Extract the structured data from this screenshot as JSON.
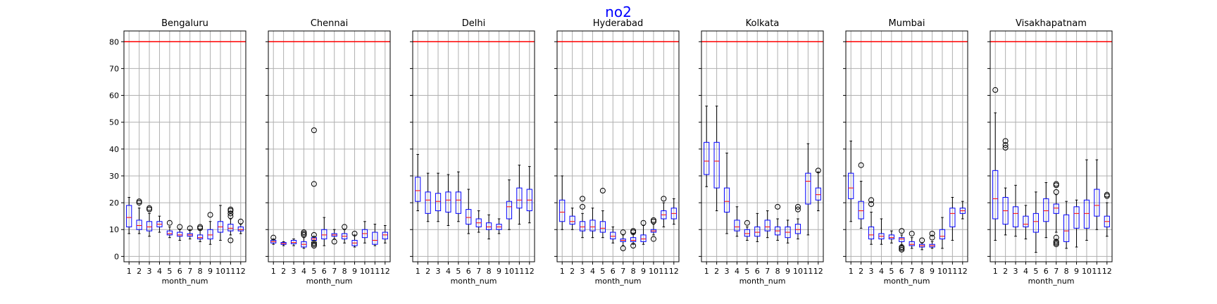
{
  "chart_data": {
    "type": "boxplot",
    "suptitle": "no2",
    "suptitle_color": "#0000ff",
    "xlabel": "month_num",
    "ylim": [
      -2,
      84
    ],
    "yticks": [
      0,
      10,
      20,
      30,
      40,
      50,
      60,
      70,
      80
    ],
    "categories": [
      "1",
      "2",
      "3",
      "4",
      "5",
      "6",
      "7",
      "8",
      "9",
      "10",
      "11",
      "12"
    ],
    "reference_line": {
      "y": 80,
      "color": "#ff0000"
    },
    "box_color": "#0000ff",
    "median_color": "#ff0000",
    "whisker_color": "#000000",
    "grid": true,
    "panels": [
      {
        "title": "Bengaluru",
        "boxes": [
          {
            "min": 8.5,
            "q1": 11,
            "med": 14.5,
            "q3": 19,
            "max": 22,
            "fliers": []
          },
          {
            "min": 8.5,
            "q1": 10,
            "med": 11.5,
            "q3": 13.5,
            "max": 18,
            "fliers": [
              20,
              20.5
            ]
          },
          {
            "min": 7.5,
            "q1": 9.5,
            "med": 11,
            "q3": 13,
            "max": 16,
            "fliers": [
              17.5,
              18
            ]
          },
          {
            "min": 9,
            "q1": 11,
            "med": 12,
            "q3": 13,
            "max": 15,
            "fliers": []
          },
          {
            "min": 7,
            "q1": 8,
            "med": 8.5,
            "q3": 9.5,
            "max": 11,
            "fliers": [
              12.5
            ]
          },
          {
            "min": 6,
            "q1": 7.5,
            "med": 8,
            "q3": 9,
            "max": 10,
            "fliers": [
              11
            ]
          },
          {
            "min": 6.5,
            "q1": 7.5,
            "med": 8,
            "q3": 8.5,
            "max": 10,
            "fliers": [
              10.5
            ]
          },
          {
            "min": 5.5,
            "q1": 6.5,
            "med": 7,
            "q3": 8,
            "max": 10,
            "fliers": [
              10.5,
              11
            ]
          },
          {
            "min": 4.5,
            "q1": 6.5,
            "med": 8,
            "q3": 10,
            "max": 13,
            "fliers": [
              15.5
            ]
          },
          {
            "min": 6,
            "q1": 9,
            "med": 11,
            "q3": 13,
            "max": 19,
            "fliers": []
          },
          {
            "min": 8,
            "q1": 9.5,
            "med": 10.5,
            "q3": 12,
            "max": 14,
            "fliers": [
              6,
              15,
              16,
              17,
              17.5
            ]
          },
          {
            "min": 8.5,
            "q1": 9.5,
            "med": 10,
            "q3": 11,
            "max": 12,
            "fliers": [
              13
            ]
          }
        ]
      },
      {
        "title": "Chennai",
        "boxes": [
          {
            "min": 4.5,
            "q1": 5,
            "med": 5.5,
            "q3": 6,
            "max": 6.5,
            "fliers": [
              7
            ]
          },
          {
            "min": 4,
            "q1": 4.5,
            "med": 4.8,
            "q3": 5.2,
            "max": 5.5,
            "fliers": []
          },
          {
            "min": 4,
            "q1": 4.7,
            "med": 5.2,
            "q3": 6,
            "max": 6.5,
            "fliers": []
          },
          {
            "min": 3,
            "q1": 3.5,
            "med": 4.5,
            "q3": 5.5,
            "max": 7,
            "fliers": [
              8,
              8.5,
              9
            ]
          },
          {
            "min": 5,
            "q1": 6,
            "med": 6.5,
            "q3": 7,
            "max": 7.5,
            "fliers": [
              4,
              4.5,
              5,
              8,
              27,
              47
            ]
          },
          {
            "min": 4,
            "q1": 6.5,
            "med": 8,
            "q3": 10,
            "max": 14.5,
            "fliers": []
          },
          {
            "min": 6.5,
            "q1": 7.5,
            "med": 8,
            "q3": 8.5,
            "max": 10,
            "fliers": [
              5.5
            ]
          },
          {
            "min": 5,
            "q1": 6.5,
            "med": 7.5,
            "q3": 8.5,
            "max": 10,
            "fliers": [
              11
            ]
          },
          {
            "min": 3.5,
            "q1": 4,
            "med": 5,
            "q3": 6,
            "max": 8,
            "fliers": [
              8.5
            ]
          },
          {
            "min": 5,
            "q1": 7,
            "med": 8.5,
            "q3": 10,
            "max": 13,
            "fliers": []
          },
          {
            "min": 4,
            "q1": 4.5,
            "med": 6,
            "q3": 9,
            "max": 12,
            "fliers": []
          },
          {
            "min": 5,
            "q1": 6.5,
            "med": 8,
            "q3": 9,
            "max": 11.5,
            "fliers": []
          }
        ]
      },
      {
        "title": "Delhi",
        "boxes": [
          {
            "min": 17,
            "q1": 20.5,
            "med": 24.5,
            "q3": 29.5,
            "max": 38,
            "fliers": []
          },
          {
            "min": 13,
            "q1": 16,
            "med": 21,
            "q3": 24,
            "max": 31,
            "fliers": []
          },
          {
            "min": 13,
            "q1": 17,
            "med": 20.5,
            "q3": 23.5,
            "max": 31,
            "fliers": []
          },
          {
            "min": 11.5,
            "q1": 16.5,
            "med": 21,
            "q3": 24,
            "max": 30.5,
            "fliers": []
          },
          {
            "min": 13,
            "q1": 16,
            "med": 21,
            "q3": 24,
            "max": 31.5,
            "fliers": []
          },
          {
            "min": 8.5,
            "q1": 12,
            "med": 14.5,
            "q3": 17.5,
            "max": 25,
            "fliers": []
          },
          {
            "min": 9,
            "q1": 11,
            "med": 12.5,
            "q3": 14,
            "max": 17,
            "fliers": []
          },
          {
            "min": 6.5,
            "q1": 10,
            "med": 11,
            "q3": 12.5,
            "max": 15.5,
            "fliers": []
          },
          {
            "min": 8.5,
            "q1": 10,
            "med": 11,
            "q3": 12,
            "max": 14,
            "fliers": []
          },
          {
            "min": 10,
            "q1": 14,
            "med": 18.5,
            "q3": 20.5,
            "max": 28.5,
            "fliers": []
          },
          {
            "min": 12,
            "q1": 18,
            "med": 21,
            "q3": 25.5,
            "max": 34,
            "fliers": []
          },
          {
            "min": 12.5,
            "q1": 17,
            "med": 21,
            "q3": 25,
            "max": 33.5,
            "fliers": []
          }
        ]
      },
      {
        "title": "Hyderabad",
        "boxes": [
          {
            "min": 10,
            "q1": 13,
            "med": 16.5,
            "q3": 21,
            "max": 30,
            "fliers": []
          },
          {
            "min": 10,
            "q1": 12,
            "med": 13,
            "q3": 15,
            "max": 18,
            "fliers": []
          },
          {
            "min": 7,
            "q1": 9.5,
            "med": 11,
            "q3": 13,
            "max": 16,
            "fliers": [
              18.5,
              21.5
            ]
          },
          {
            "min": 7,
            "q1": 9.5,
            "med": 11,
            "q3": 13.5,
            "max": 18,
            "fliers": []
          },
          {
            "min": 7,
            "q1": 9,
            "med": 10.5,
            "q3": 13,
            "max": 17,
            "fliers": [
              24.5
            ]
          },
          {
            "min": 5,
            "q1": 6.5,
            "med": 7.5,
            "q3": 9,
            "max": 11,
            "fliers": []
          },
          {
            "min": 4,
            "q1": 5.5,
            "med": 6,
            "q3": 6.5,
            "max": 8,
            "fliers": [
              3,
              9
            ]
          },
          {
            "min": 4.5,
            "q1": 5.5,
            "med": 6,
            "q3": 7,
            "max": 8.5,
            "fliers": [
              4,
              9,
              9.5
            ]
          },
          {
            "min": 4.5,
            "q1": 5.5,
            "med": 6.5,
            "q3": 8,
            "max": 11.5,
            "fliers": [
              12.5
            ]
          },
          {
            "min": 8,
            "q1": 9,
            "med": 9.5,
            "q3": 10,
            "max": 12,
            "fliers": [
              6.5,
              13,
              13.5
            ]
          },
          {
            "min": 11,
            "q1": 14,
            "med": 15.5,
            "q3": 17,
            "max": 20,
            "fliers": [
              21.5
            ]
          },
          {
            "min": 12,
            "q1": 14,
            "med": 16,
            "q3": 18,
            "max": 21.5,
            "fliers": []
          }
        ]
      },
      {
        "title": "Kolkata",
        "boxes": [
          {
            "min": 26,
            "q1": 30.5,
            "med": 35.5,
            "q3": 42.5,
            "max": 56,
            "fliers": []
          },
          {
            "min": 17,
            "q1": 25.5,
            "med": 35.5,
            "q3": 42.5,
            "max": 56,
            "fliers": []
          },
          {
            "min": 8.5,
            "q1": 16.5,
            "med": 20.5,
            "q3": 25.5,
            "max": 38.5,
            "fliers": []
          },
          {
            "min": 7.5,
            "q1": 9.5,
            "med": 11,
            "q3": 13.5,
            "max": 18.5,
            "fliers": []
          },
          {
            "min": 6,
            "q1": 7.5,
            "med": 8.5,
            "q3": 10,
            "max": 11,
            "fliers": [
              12.5
            ]
          },
          {
            "min": 5.5,
            "q1": 7.5,
            "med": 9,
            "q3": 11,
            "max": 16,
            "fliers": []
          },
          {
            "min": 7,
            "q1": 9.5,
            "med": 11,
            "q3": 13.5,
            "max": 17,
            "fliers": []
          },
          {
            "min": 6,
            "q1": 8,
            "med": 9.5,
            "q3": 11,
            "max": 14,
            "fliers": [
              18.5
            ]
          },
          {
            "min": 5,
            "q1": 7,
            "med": 9,
            "q3": 11,
            "max": 13.5,
            "fliers": []
          },
          {
            "min": 6.5,
            "q1": 8.5,
            "med": 10,
            "q3": 12,
            "max": 14,
            "fliers": [
              17.5,
              18.5
            ]
          },
          {
            "min": 8,
            "q1": 19.5,
            "med": 28,
            "q3": 31,
            "max": 42,
            "fliers": []
          },
          {
            "min": 17,
            "q1": 21,
            "med": 23,
            "q3": 25.5,
            "max": 31.5,
            "fliers": [
              32
            ]
          }
        ]
      },
      {
        "title": "Mumbai",
        "boxes": [
          {
            "min": 13,
            "q1": 21.5,
            "med": 25.5,
            "q3": 31,
            "max": 43,
            "fliers": []
          },
          {
            "min": 10.5,
            "q1": 14,
            "med": 17,
            "q3": 20.5,
            "max": 28,
            "fliers": [
              34
            ]
          },
          {
            "min": 4.5,
            "q1": 6.5,
            "med": 8,
            "q3": 11,
            "max": 16.5,
            "fliers": [
              19.5,
              21
            ]
          },
          {
            "min": 4.5,
            "q1": 6.5,
            "med": 7.5,
            "q3": 8.5,
            "max": 14,
            "fliers": []
          },
          {
            "min": 5,
            "q1": 6.5,
            "med": 7,
            "q3": 8,
            "max": 9.5,
            "fliers": []
          },
          {
            "min": 4,
            "q1": 5.5,
            "med": 6.5,
            "q3": 7,
            "max": 8,
            "fliers": [
              2.5,
              3,
              3.5,
              9.5
            ]
          },
          {
            "min": 3,
            "q1": 4,
            "med": 4.5,
            "q3": 5.5,
            "max": 7,
            "fliers": [
              8.5
            ]
          },
          {
            "min": 2.5,
            "q1": 3.5,
            "med": 4,
            "q3": 4.5,
            "max": 5,
            "fliers": [
              6
            ]
          },
          {
            "min": 3,
            "q1": 3.5,
            "med": 4,
            "q3": 4.5,
            "max": 5.5,
            "fliers": [
              7,
              8.5
            ]
          },
          {
            "min": 3,
            "q1": 6.5,
            "med": 7.5,
            "q3": 10,
            "max": 14.5,
            "fliers": []
          },
          {
            "min": 6,
            "q1": 11,
            "med": 16,
            "q3": 18,
            "max": 22,
            "fliers": []
          },
          {
            "min": 14,
            "q1": 16,
            "med": 17,
            "q3": 18,
            "max": 20.5,
            "fliers": []
          }
        ]
      },
      {
        "title": "Visakhapatnam",
        "boxes": [
          {
            "min": 6,
            "q1": 14,
            "med": 21.5,
            "q3": 32,
            "max": 53.5,
            "fliers": [
              62
            ]
          },
          {
            "min": 8,
            "q1": 12,
            "med": 17,
            "q3": 22,
            "max": 25.5,
            "fliers": [
              40.5,
              41.5,
              43
            ]
          },
          {
            "min": 7.5,
            "q1": 11,
            "med": 16,
            "q3": 18.5,
            "max": 26.5,
            "fliers": []
          },
          {
            "min": 6.5,
            "q1": 11,
            "med": 12,
            "q3": 15,
            "max": 19,
            "fliers": []
          },
          {
            "min": 1.5,
            "q1": 9,
            "med": 13,
            "q3": 16,
            "max": 24,
            "fliers": []
          },
          {
            "min": 7,
            "q1": 13,
            "med": 17,
            "q3": 21.5,
            "max": 27.5,
            "fliers": []
          },
          {
            "min": 9,
            "q1": 16,
            "med": 18,
            "q3": 19.5,
            "max": 23,
            "fliers": [
              4.5,
              5,
              5.5,
              7,
              24,
              26.5,
              27
            ]
          },
          {
            "min": 3,
            "q1": 5.5,
            "med": 9.5,
            "q3": 15.5,
            "max": 20.5,
            "fliers": []
          },
          {
            "min": 3.5,
            "q1": 10.5,
            "med": 16,
            "q3": 18.5,
            "max": 21,
            "fliers": []
          },
          {
            "min": 6,
            "q1": 10.5,
            "med": 16,
            "q3": 21,
            "max": 36,
            "fliers": []
          },
          {
            "min": 10,
            "q1": 15,
            "med": 19,
            "q3": 25,
            "max": 36,
            "fliers": []
          },
          {
            "min": 7.5,
            "q1": 11,
            "med": 13,
            "q3": 15,
            "max": 20,
            "fliers": [
              22.5,
              23
            ]
          }
        ]
      }
    ]
  }
}
